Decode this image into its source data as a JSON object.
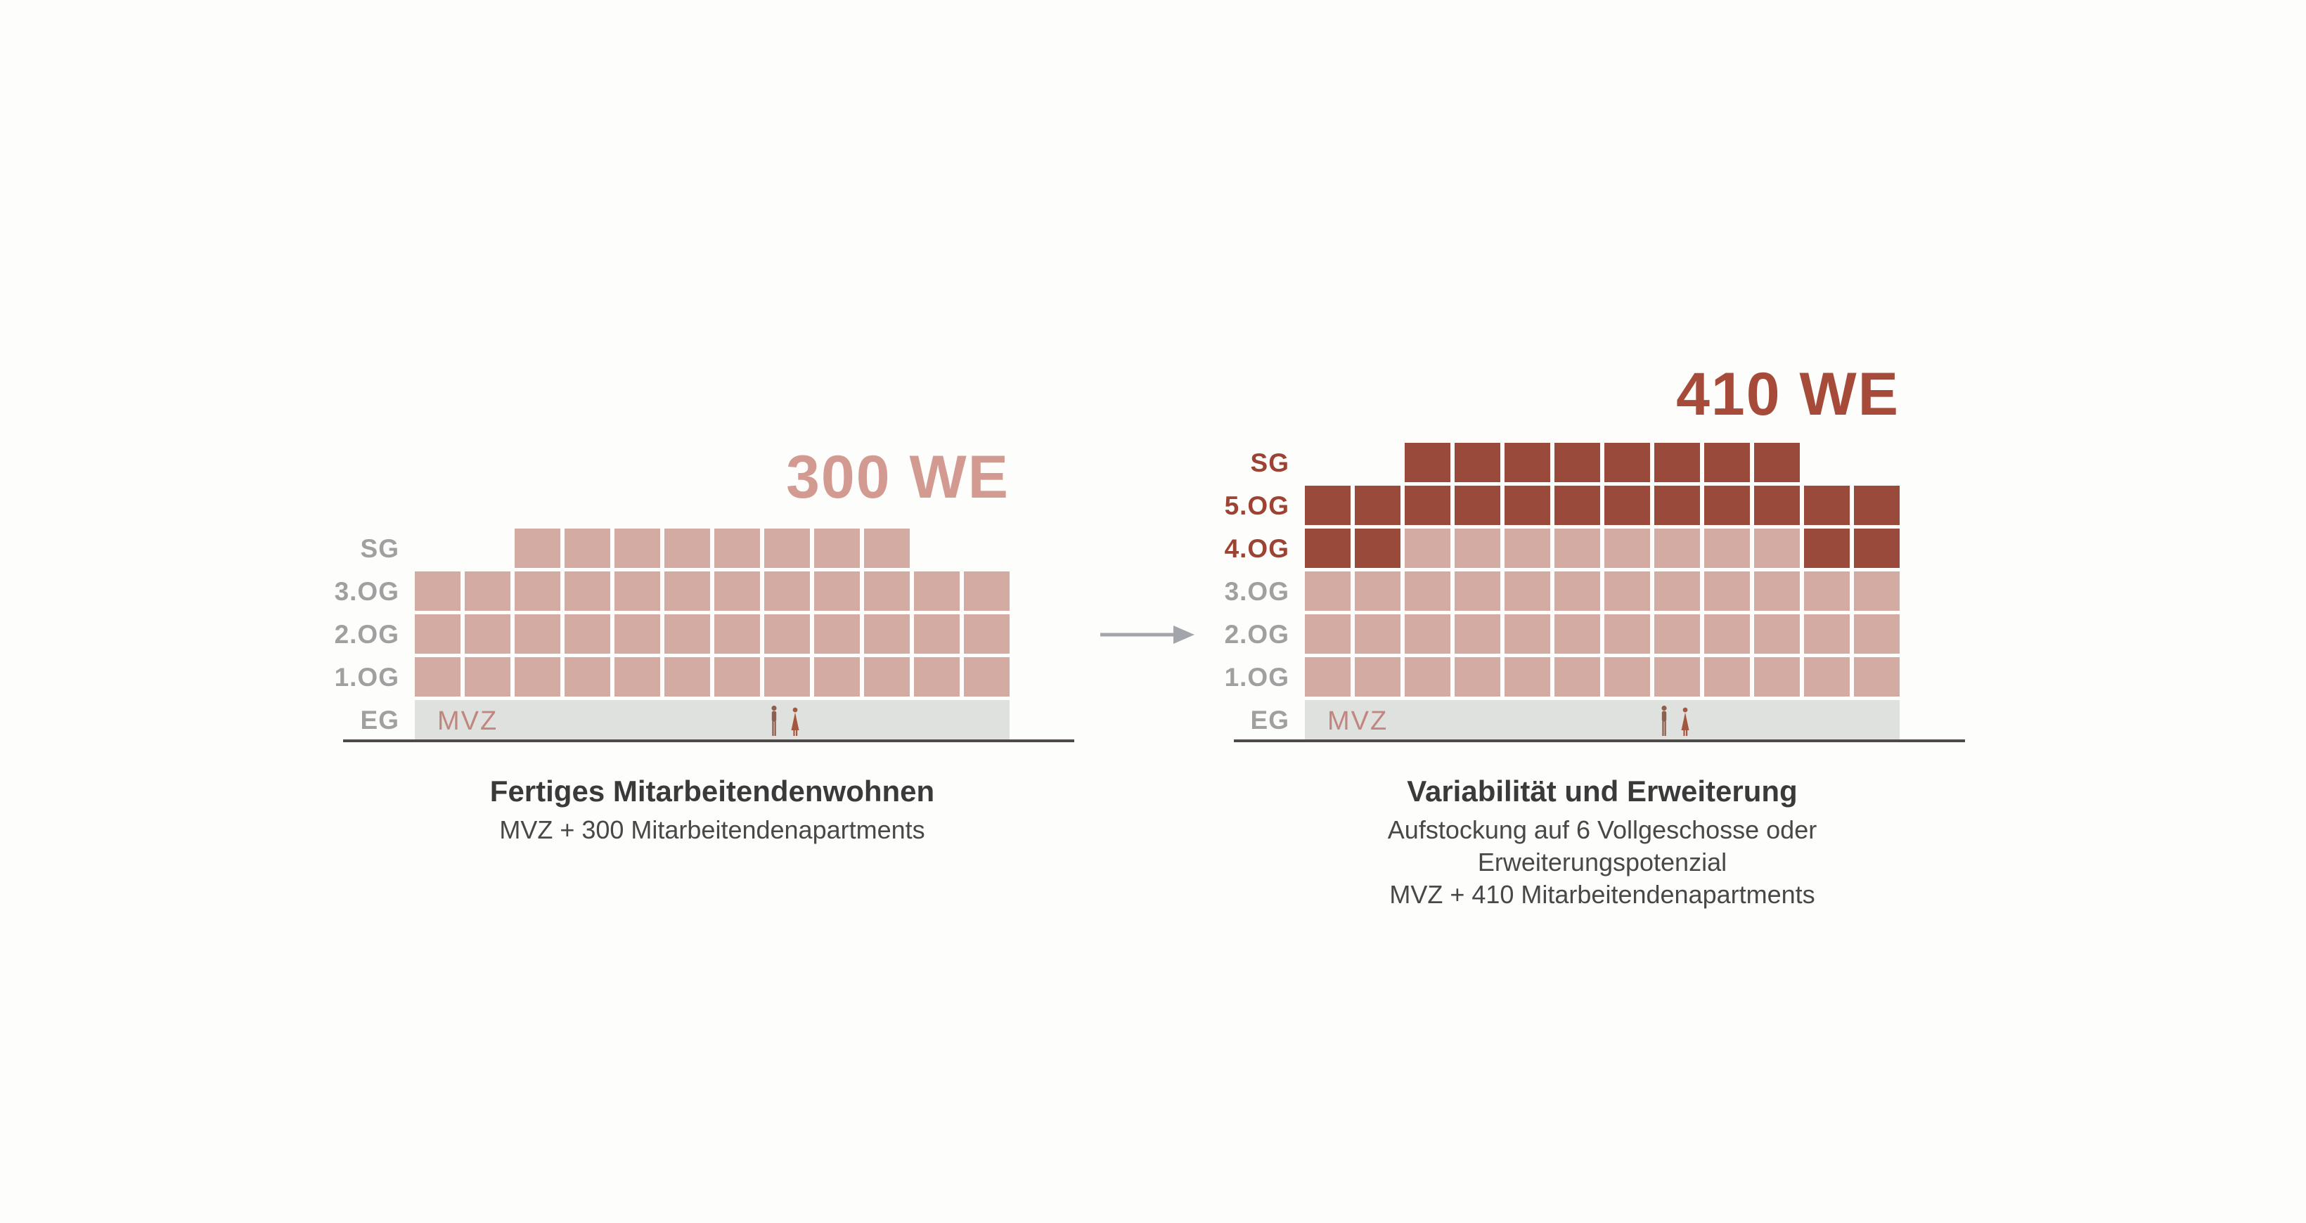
{
  "page": {
    "background": "#fdfdfb"
  },
  "colors": {
    "page_bg": "#fdfdfb",
    "unit_light": "#d3aba3",
    "unit_dark": "#9a4a3b",
    "eg_band": "#dfe1de",
    "label_gray": "#a0a0a0",
    "label_accent": "#9c4334",
    "title_left_color": "#d39a92",
    "title_right_color": "#a64a39",
    "caption_title_color": "#3a3a3a",
    "caption_text_color": "#484848",
    "mvz_color": "#c0867f",
    "ground_color": "#4e4a48",
    "arrow_color": "#a2a5a9",
    "person_a_color": "#8d5f51",
    "person_b_color": "#a3573f"
  },
  "icons": {
    "arrow": "right-arrow-icon",
    "people": "people-silhouette-icon"
  },
  "figures": [
    {
      "id": "existing",
      "title": "300 WE",
      "caption_title": "Fertiges Mitarbeitendenwohnen",
      "caption_lines": [
        "MVZ + 300 Mitarbeitendenapartments"
      ],
      "ground_label": "MVZ",
      "floors": [
        {
          "label": "SG",
          "accent": false,
          "cells": [
            "empty",
            "empty",
            "light",
            "light",
            "light",
            "light",
            "light",
            "light",
            "light",
            "light",
            "empty",
            "empty"
          ]
        },
        {
          "label": "3.OG",
          "accent": false,
          "cells": [
            "light",
            "light",
            "light",
            "light",
            "light",
            "light",
            "light",
            "light",
            "light",
            "light",
            "light",
            "light"
          ]
        },
        {
          "label": "2.OG",
          "accent": false,
          "cells": [
            "light",
            "light",
            "light",
            "light",
            "light",
            "light",
            "light",
            "light",
            "light",
            "light",
            "light",
            "light"
          ]
        },
        {
          "label": "1.OG",
          "accent": false,
          "cells": [
            "light",
            "light",
            "light",
            "light",
            "light",
            "light",
            "light",
            "light",
            "light",
            "light",
            "light",
            "light"
          ]
        },
        {
          "label": "EG",
          "accent": false,
          "band": true
        }
      ]
    },
    {
      "id": "expansion",
      "title": "410 WE",
      "caption_title": "Variabilität und Erweiterung",
      "caption_lines": [
        "Aufstockung auf 6 Vollgeschosse oder Erweiterungspotenzial",
        "MVZ + 410 Mitarbeitendenapartments"
      ],
      "ground_label": "MVZ",
      "floors": [
        {
          "label": "SG",
          "accent": true,
          "cells": [
            "empty",
            "empty",
            "dark",
            "dark",
            "dark",
            "dark",
            "dark",
            "dark",
            "dark",
            "dark",
            "empty",
            "empty"
          ]
        },
        {
          "label": "5.OG",
          "accent": true,
          "cells": [
            "dark",
            "dark",
            "dark",
            "dark",
            "dark",
            "dark",
            "dark",
            "dark",
            "dark",
            "dark",
            "dark",
            "dark"
          ]
        },
        {
          "label": "4.OG",
          "accent": true,
          "cells": [
            "dark",
            "dark",
            "light",
            "light",
            "light",
            "light",
            "light",
            "light",
            "light",
            "light",
            "dark",
            "dark"
          ]
        },
        {
          "label": "3.OG",
          "accent": false,
          "cells": [
            "light",
            "light",
            "light",
            "light",
            "light",
            "light",
            "light",
            "light",
            "light",
            "light",
            "light",
            "light"
          ]
        },
        {
          "label": "2.OG",
          "accent": false,
          "cells": [
            "light",
            "light",
            "light",
            "light",
            "light",
            "light",
            "light",
            "light",
            "light",
            "light",
            "light",
            "light"
          ]
        },
        {
          "label": "1.OG",
          "accent": false,
          "cells": [
            "light",
            "light",
            "light",
            "light",
            "light",
            "light",
            "light",
            "light",
            "light",
            "light",
            "light",
            "light"
          ]
        },
        {
          "label": "EG",
          "accent": false,
          "band": true
        }
      ]
    }
  ]
}
